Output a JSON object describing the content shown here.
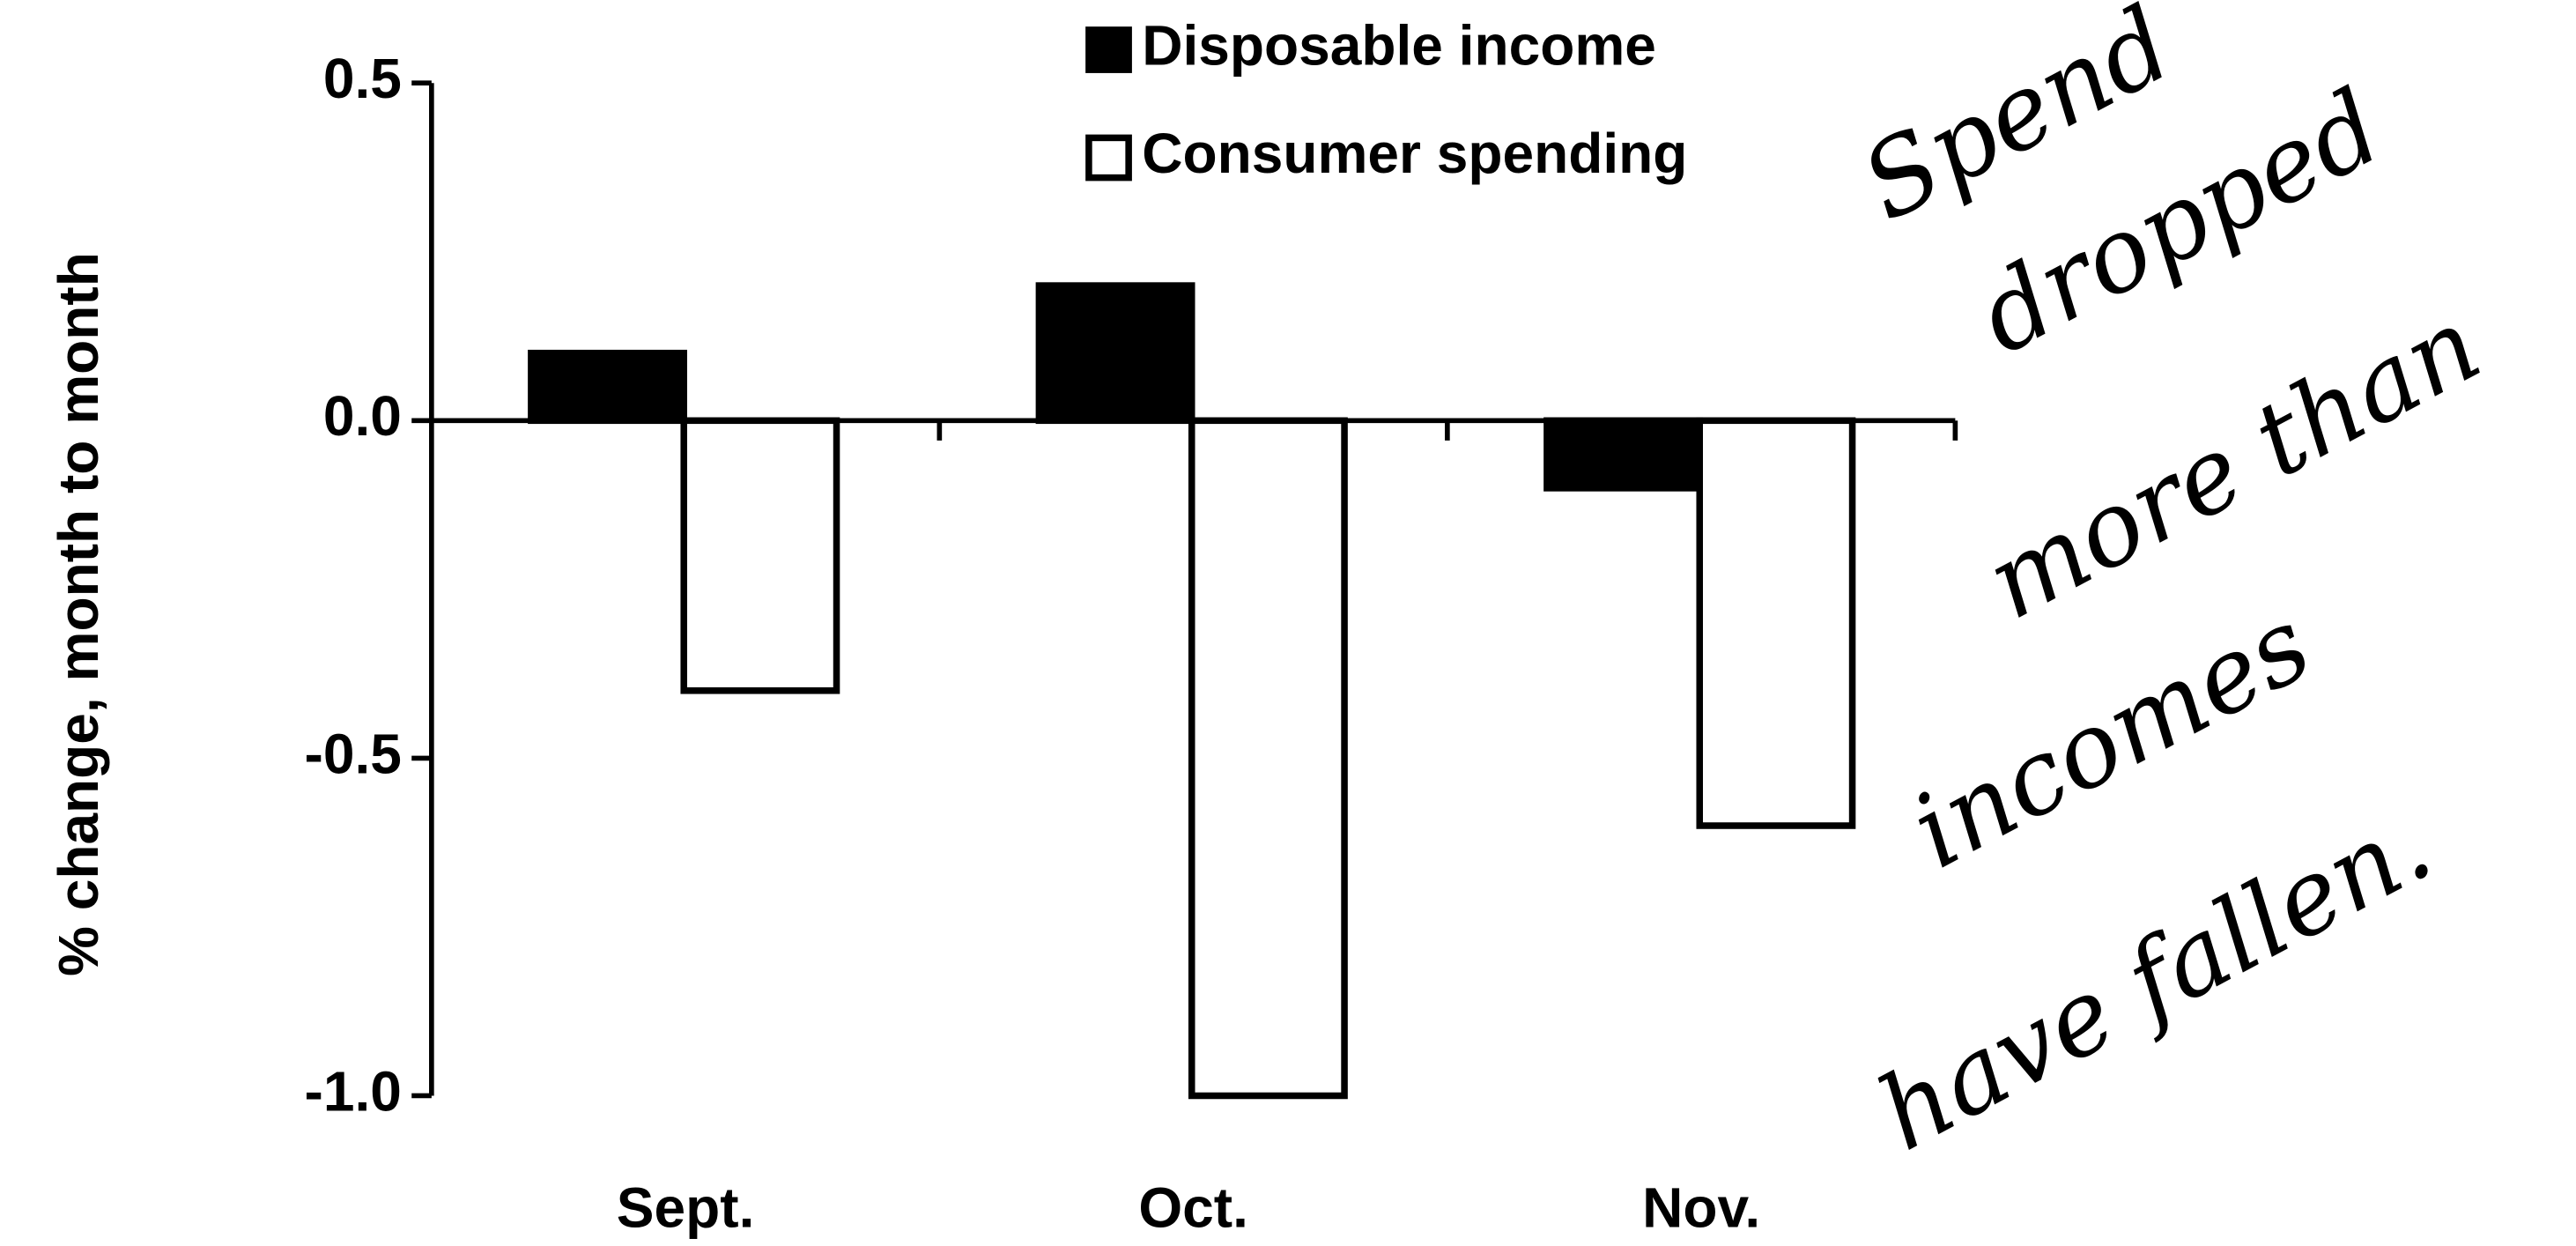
{
  "chart_data": {
    "type": "bar",
    "ylabel": "% change, month to month",
    "categories": [
      "Sept.",
      "Oct.",
      "Nov."
    ],
    "series": [
      {
        "name": "Disposable income",
        "color": "#000000",
        "values": [
          0.1,
          0.2,
          -0.1
        ]
      },
      {
        "name": "Consumer spending",
        "color": "#ffffff",
        "values": [
          -0.4,
          -1.0,
          -0.6
        ]
      }
    ],
    "ylim": [
      -1.0,
      0.5
    ],
    "yticks": [
      {
        "value": -1.0,
        "label": "-1.0"
      },
      {
        "value": -0.5,
        "label": "-0.5"
      },
      {
        "value": 0.0,
        "label": "0.0"
      },
      {
        "value": 0.5,
        "label": "0.5"
      }
    ],
    "legend": "top",
    "annotation": [
      "Spend",
      "dropped",
      "more than",
      "incomes",
      "have fallen."
    ]
  }
}
